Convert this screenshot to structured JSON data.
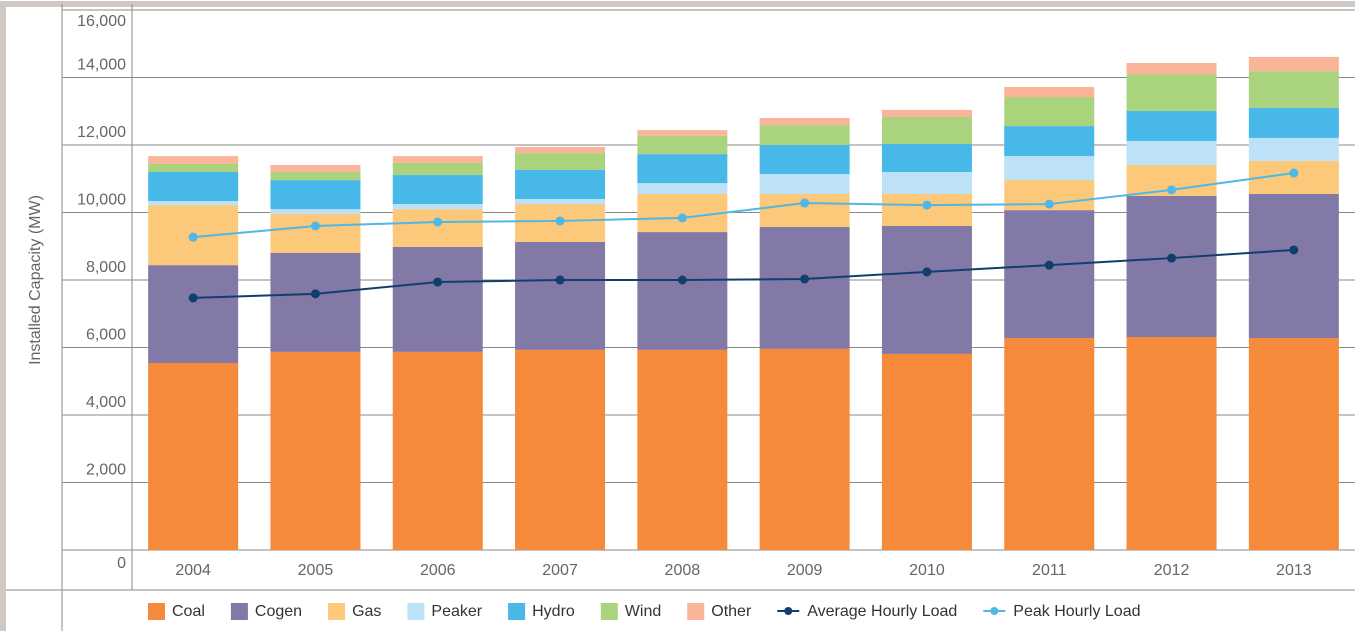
{
  "chart_data": {
    "type": "bar",
    "stacked": true,
    "ylabel": "Installed Capacity (MW)",
    "categories": [
      "2004",
      "2005",
      "2006",
      "2007",
      "2008",
      "2009",
      "2010",
      "2011",
      "2012",
      "2013"
    ],
    "ylim": [
      0,
      16000
    ],
    "yticks": [
      0,
      {
        "value": 2000,
        "label": "2,000"
      },
      {
        "value": 4000,
        "label": "4,000"
      },
      {
        "value": 6000,
        "label": "6,000"
      },
      {
        "value": 8000,
        "label": "8,000"
      },
      {
        "value": 10000,
        "label": "10,000"
      },
      {
        "value": 12000,
        "label": "12,000"
      },
      {
        "value": 14000,
        "label": "14,000"
      },
      {
        "value": 16000,
        "label": "16,000"
      }
    ],
    "grid": true,
    "series": [
      {
        "name": "Coal",
        "color": "#f58a3a",
        "values": [
          5540,
          5870,
          5870,
          5930,
          5930,
          5960,
          5810,
          6280,
          6310,
          6280
        ]
      },
      {
        "name": "Cogen",
        "color": "#8279a7",
        "values": [
          2900,
          2930,
          3110,
          3200,
          3490,
          3610,
          3790,
          3790,
          4180,
          4270
        ]
      },
      {
        "name": "Gas",
        "color": "#fcc87a",
        "values": [
          1780,
          1160,
          1120,
          1120,
          1130,
          980,
          950,
          890,
          920,
          980
        ]
      },
      {
        "name": "Peaker",
        "color": "#bde1f6",
        "values": [
          120,
          140,
          150,
          150,
          320,
          590,
          650,
          710,
          710,
          680
        ]
      },
      {
        "name": "Hydro",
        "color": "#48b8e8",
        "values": [
          860,
          860,
          860,
          860,
          860,
          860,
          830,
          890,
          890,
          890
        ]
      },
      {
        "name": "Wind",
        "color": "#aad37e",
        "values": [
          240,
          240,
          360,
          500,
          540,
          590,
          800,
          860,
          1090,
          1090
        ]
      },
      {
        "name": "Other",
        "color": "#f9b49a",
        "values": [
          230,
          210,
          200,
          180,
          170,
          210,
          210,
          300,
          330,
          420
        ]
      },
      {
        "name": "Average Hourly Load",
        "type": "line",
        "color": "#103f6e",
        "values": [
          7470,
          7590,
          7940,
          8000,
          8000,
          8030,
          8240,
          8440,
          8650,
          8890
        ]
      },
      {
        "name": "Peak Hourly Load",
        "type": "line",
        "color": "#4fb8e6",
        "values": [
          9270,
          9600,
          9720,
          9750,
          9840,
          10280,
          10220,
          10250,
          10670,
          11170
        ]
      }
    ]
  }
}
